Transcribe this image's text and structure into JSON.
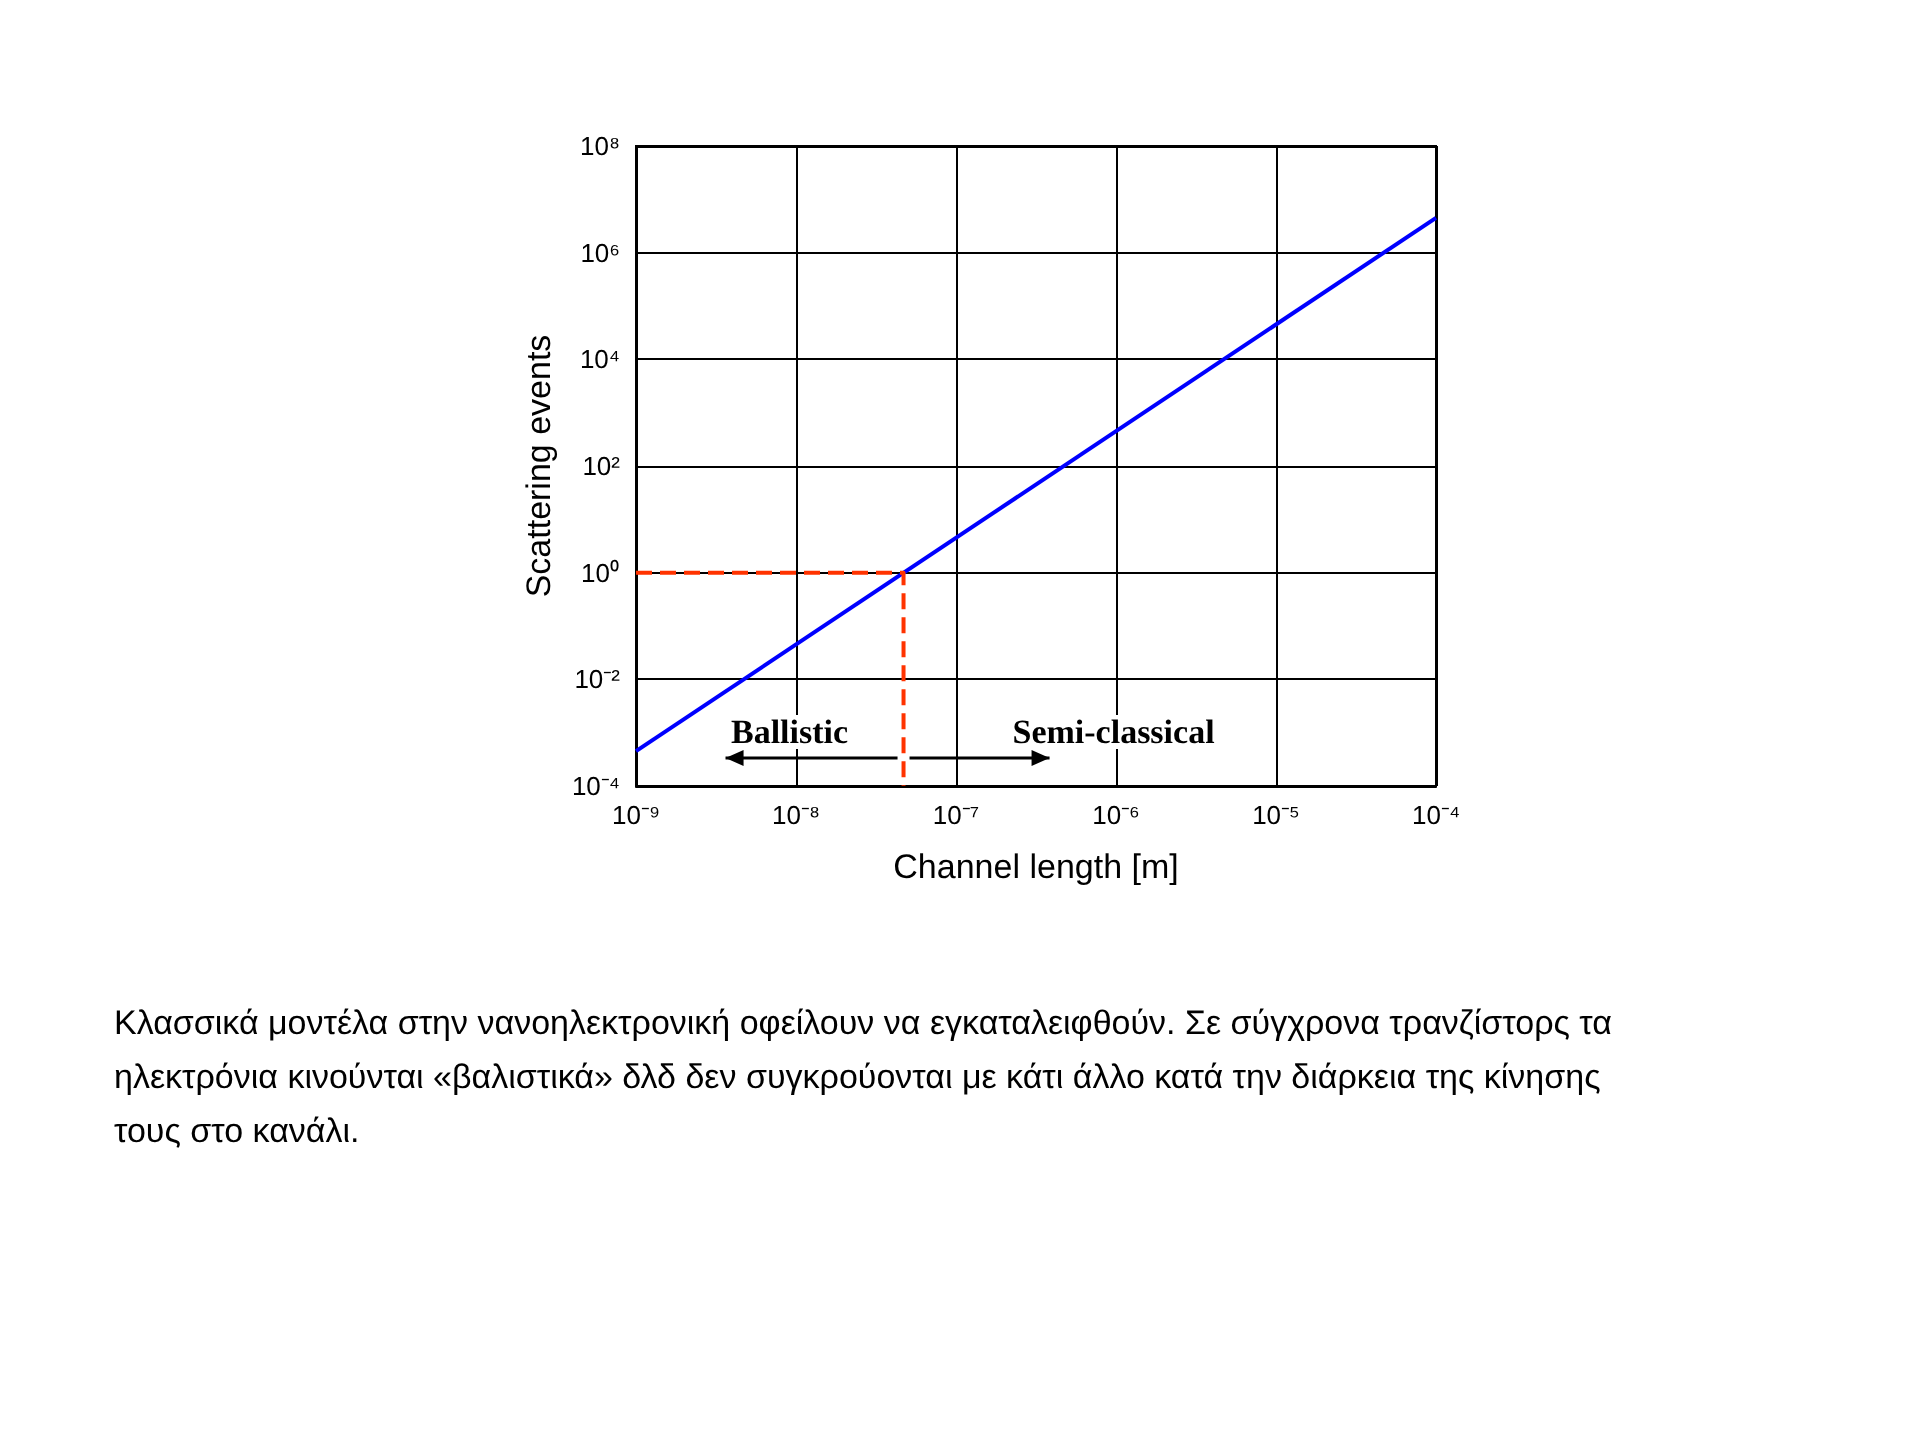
{
  "chart_data": {
    "type": "line",
    "xlabel": "Channel length [m]",
    "ylabel": "Scattering events",
    "log": "xy",
    "grid": true,
    "marker": "none",
    "xlim": [
      1e-09,
      0.0001
    ],
    "ylim": [
      0.0001,
      100000000.0
    ],
    "xticks": [
      {
        "value": 1e-09,
        "label": "10⁻⁹"
      },
      {
        "value": 1e-08,
        "label": "10⁻⁸"
      },
      {
        "value": 1e-07,
        "label": "10⁻⁷"
      },
      {
        "value": 1e-06,
        "label": "10⁻⁶"
      },
      {
        "value": 1e-05,
        "label": "10⁻⁵"
      },
      {
        "value": 0.0001,
        "label": "10⁻⁴"
      }
    ],
    "yticks": [
      {
        "value": 0.0001,
        "label": "10⁻⁴"
      },
      {
        "value": 0.01,
        "label": "10⁻²"
      },
      {
        "value": 1,
        "label": "10⁰"
      },
      {
        "value": 100,
        "label": "10²"
      },
      {
        "value": 10000.0,
        "label": "10⁴"
      },
      {
        "value": 1000000.0,
        "label": "10⁶"
      },
      {
        "value": 100000000.0,
        "label": "10⁸"
      }
    ],
    "series": [
      {
        "color": "#0000ff",
        "line_style": "solid",
        "x": [
          1e-09,
          0.0001
        ],
        "values": [
          0.00045,
          4500000
        ]
      },
      {
        "color": "#ff3300",
        "line_style": "dashed",
        "x": [
          1e-09,
          4.7e-08,
          4.7e-08
        ],
        "values": [
          1,
          1,
          0.0001
        ]
      }
    ],
    "annotations": [
      "Ballistic",
      "Semi-classical",
      "Κλασσικά μοντέλα στην νανοηλεκτρονική οφείλουν να εγκαταλειφθούν. Σε σύγχρονα τρανζίστορς τα ηλεκτρόνια κινούνται «βαλιστικά» δλδ δεν συγκρούονται με κάτι άλλο κατά την διάρκεια της κίνησης τους στο κανάλι."
    ]
  }
}
